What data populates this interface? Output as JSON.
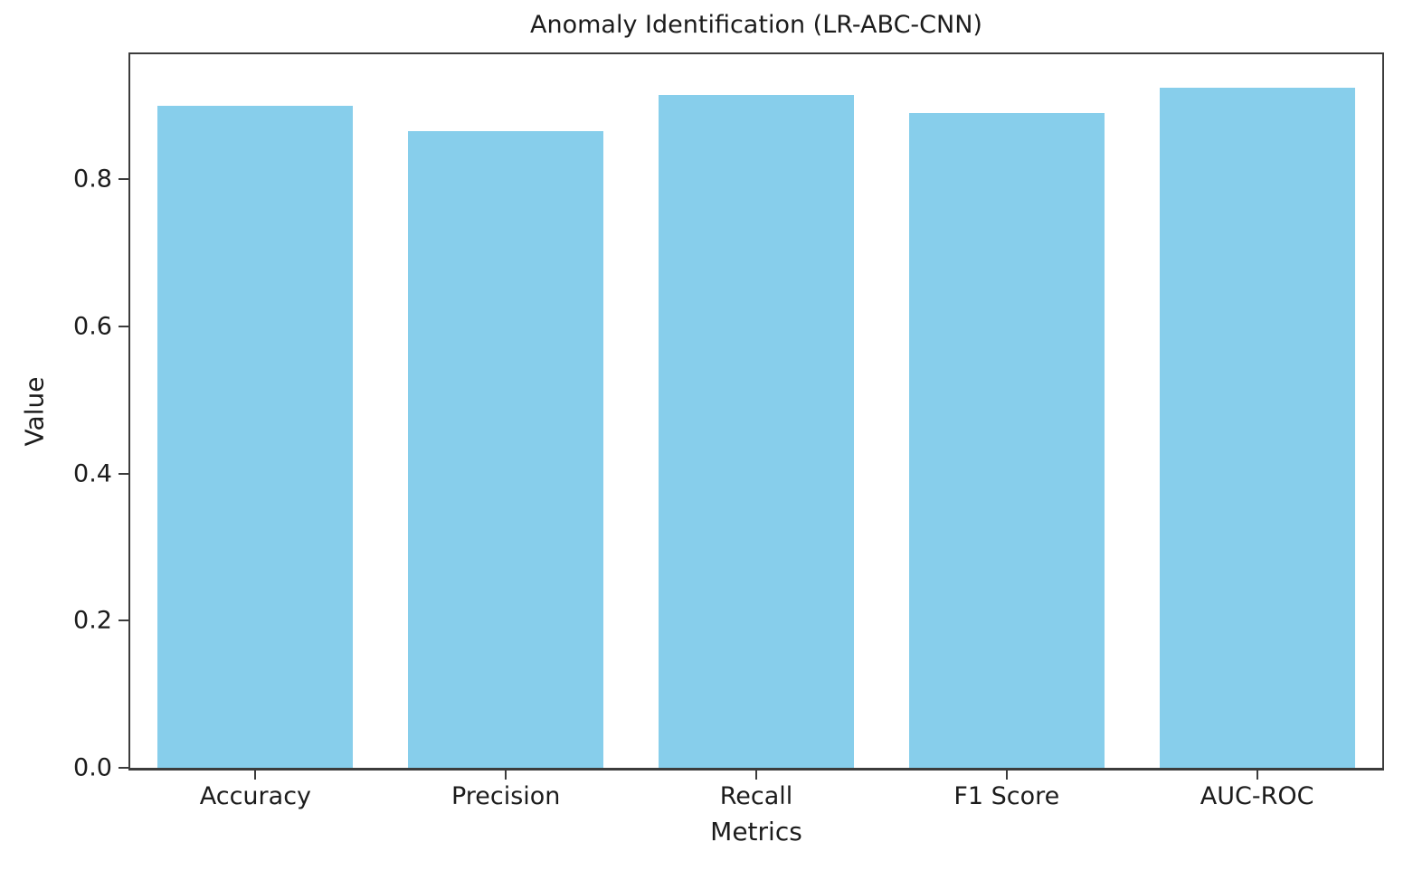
{
  "chart_data": {
    "type": "bar",
    "title": "Anomaly Identification (LR-ABC-CNN)",
    "xlabel": "Metrics",
    "ylabel": "Value",
    "categories": [
      "Accuracy",
      "Precision",
      "Recall",
      "F1 Score",
      "AUC-ROC"
    ],
    "values": [
      0.9,
      0.865,
      0.915,
      0.89,
      0.925
    ],
    "ylim": [
      0,
      0.97
    ],
    "yticks": [
      0,
      0.2,
      0.4,
      0.6,
      0.8
    ],
    "ytick_labels": [
      "0.0",
      "0.2",
      "0.4",
      "0.6",
      "0.8"
    ],
    "grid": false,
    "legend_position": "none",
    "bar_color": "#87CEEB"
  },
  "colors": {
    "background": "#FFFFFF",
    "spine": "#3C3C3C",
    "text": "#1C1C1C",
    "bar": "#87CEEB"
  }
}
